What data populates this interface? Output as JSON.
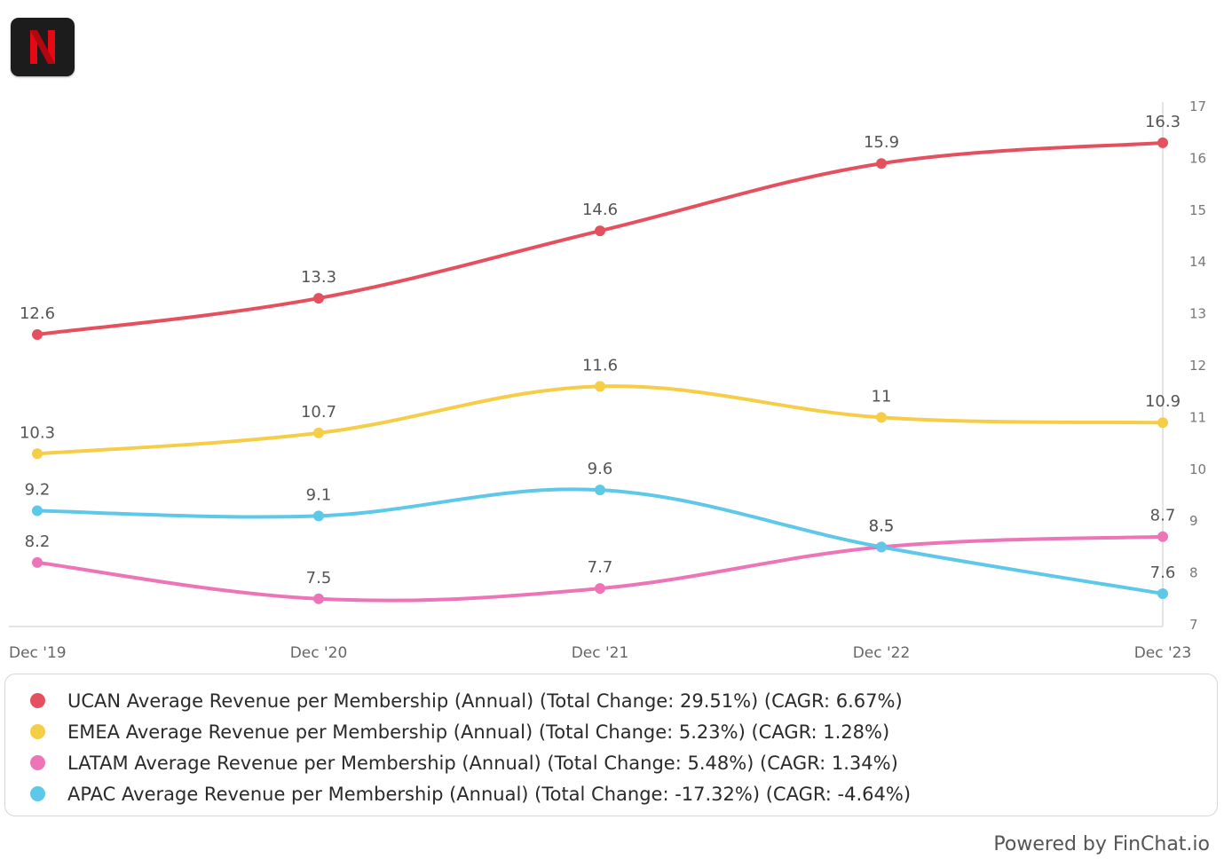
{
  "logo": {
    "letter": "N",
    "letter_color": "#e50914"
  },
  "chart_data": {
    "type": "line",
    "x": [
      "Dec '19",
      "Dec '20",
      "Dec '21",
      "Dec '22",
      "Dec '23"
    ],
    "ylim": [
      7,
      17
    ],
    "y_ticks": [
      7,
      8,
      9,
      10,
      11,
      12,
      13,
      14,
      15,
      16,
      17
    ],
    "y_axis_side": "right",
    "grid": false,
    "legend_position": "bottom",
    "series": [
      {
        "name": "UCAN Average Revenue per Membership (Annual) (Total Change: 29.51%) (CAGR: 6.67%)",
        "color": "#e5505f",
        "values": [
          12.6,
          13.3,
          14.6,
          15.9,
          16.3
        ],
        "labels": [
          "12.6",
          "13.3",
          "14.6",
          "15.9",
          "16.3"
        ]
      },
      {
        "name": "EMEA Average Revenue per Membership (Annual) (Total Change: 5.23%) (CAGR: 1.28%)",
        "color": "#f5cd47",
        "values": [
          10.3,
          10.7,
          11.6,
          11,
          10.9
        ],
        "labels": [
          "10.3",
          "10.7",
          "11.6",
          "11",
          "10.9"
        ]
      },
      {
        "name": "LATAM Average Revenue per Membership (Annual) (Total Change: 5.48%) (CAGR: 1.34%)",
        "color": "#ee74b8",
        "values": [
          8.2,
          7.5,
          7.7,
          8.5,
          8.7
        ],
        "labels": [
          "8.2",
          "7.5",
          "7.7",
          "8.5",
          "8.7"
        ]
      },
      {
        "name": "APAC Average Revenue per Membership (Annual) (Total Change: -17.32%) (CAGR: -4.64%)",
        "color": "#5ec8e8",
        "values": [
          9.2,
          9.1,
          9.6,
          8.5,
          7.6
        ],
        "labels": [
          "9.2",
          "9.1",
          "9.6",
          "8.5",
          "7.6"
        ]
      }
    ]
  },
  "footer": {
    "credit": "Powered by FinChat.io"
  }
}
